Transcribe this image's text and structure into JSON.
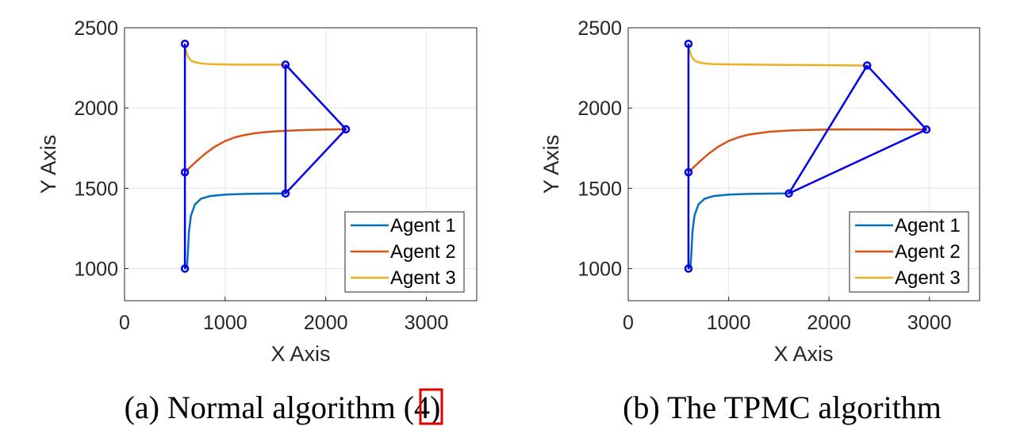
{
  "chart_data": [
    {
      "type": "line",
      "caption_parts": [
        "(a) Normal algorithm (",
        "4",
        ")"
      ],
      "xlabel": "X Axis",
      "ylabel": "Y Axis",
      "xlim": [
        0,
        3500
      ],
      "ylim": [
        800,
        2500
      ],
      "xticks": [
        0,
        1000,
        2000,
        3000
      ],
      "yticks": [
        1000,
        1500,
        2000,
        2500
      ],
      "grid": true,
      "legend_position": "bottom-right",
      "series": [
        {
          "name": "Agent 1",
          "color": "#0072BD",
          "x": [
            600,
            620,
            630,
            640,
            660,
            700,
            760,
            850,
            1000,
            1200,
            1400,
            1600
          ],
          "y": [
            1000,
            1010,
            1100,
            1230,
            1330,
            1400,
            1435,
            1452,
            1461,
            1465,
            1467,
            1468
          ]
        },
        {
          "name": "Agent 2",
          "color": "#D95319",
          "x": [
            600,
            700,
            800,
            900,
            1000,
            1100,
            1200,
            1300,
            1400,
            1500,
            1600,
            1800,
            2000,
            2200
          ],
          "y": [
            1600,
            1660,
            1715,
            1760,
            1795,
            1818,
            1833,
            1843,
            1850,
            1855,
            1858,
            1863,
            1866,
            1868
          ]
        },
        {
          "name": "Agent 3",
          "color": "#EDB120",
          "x": [
            600,
            610,
            630,
            660,
            700,
            760,
            850,
            1000,
            1200,
            1400,
            1600
          ],
          "y": [
            2400,
            2360,
            2320,
            2297,
            2285,
            2278,
            2274,
            2271,
            2270,
            2270,
            2270
          ]
        }
      ],
      "markers": {
        "color": "#0000EE",
        "x": [
          600,
          600,
          600,
          1600,
          1600,
          2200
        ],
        "y": [
          1000,
          1600,
          2400,
          1468,
          2270,
          1868
        ]
      },
      "links": [
        [
          600,
          1000,
          600,
          1600
        ],
        [
          600,
          1600,
          600,
          2400
        ],
        [
          1600,
          1468,
          1600,
          2270
        ],
        [
          1600,
          2270,
          2200,
          1868
        ],
        [
          2200,
          1868,
          1600,
          1468
        ]
      ]
    },
    {
      "type": "line",
      "caption_parts": [
        "(b) The TPMC algorithm",
        "",
        ""
      ],
      "xlabel": "X Axis",
      "ylabel": "Y Axis",
      "xlim": [
        0,
        3500
      ],
      "ylim": [
        800,
        2500
      ],
      "xticks": [
        0,
        1000,
        2000,
        3000
      ],
      "yticks": [
        1000,
        1500,
        2000,
        2500
      ],
      "grid": true,
      "legend_position": "bottom-right",
      "series": [
        {
          "name": "Agent 1",
          "color": "#0072BD",
          "x": [
            600,
            620,
            630,
            640,
            660,
            700,
            760,
            850,
            1000,
            1200,
            1400,
            1600
          ],
          "y": [
            1000,
            1010,
            1100,
            1230,
            1330,
            1400,
            1435,
            1452,
            1461,
            1465,
            1467,
            1468
          ]
        },
        {
          "name": "Agent 2",
          "color": "#D95319",
          "x": [
            600,
            700,
            800,
            900,
            1000,
            1100,
            1200,
            1400,
            1600,
            1800,
            2000,
            2200,
            2400,
            2600,
            2800,
            2970
          ],
          "y": [
            1600,
            1660,
            1715,
            1760,
            1795,
            1818,
            1835,
            1852,
            1860,
            1864,
            1866,
            1867,
            1867,
            1866,
            1866,
            1866
          ]
        },
        {
          "name": "Agent 3",
          "color": "#EDB120",
          "x": [
            600,
            610,
            630,
            660,
            700,
            760,
            850,
            1000,
            1300,
            1600,
            1900,
            2200,
            2380
          ],
          "y": [
            2400,
            2360,
            2320,
            2297,
            2285,
            2278,
            2274,
            2272,
            2270,
            2268,
            2267,
            2266,
            2265
          ]
        }
      ],
      "markers": {
        "color": "#0000EE",
        "x": [
          600,
          600,
          600,
          1600,
          2380,
          2970
        ],
        "y": [
          1000,
          1600,
          2400,
          1468,
          2265,
          1866
        ]
      },
      "links": [
        [
          600,
          1000,
          600,
          1600
        ],
        [
          600,
          1600,
          600,
          2400
        ],
        [
          1600,
          1468,
          2380,
          2265
        ],
        [
          2380,
          2265,
          2970,
          1866
        ],
        [
          2970,
          1866,
          1600,
          1468
        ]
      ]
    }
  ],
  "caption_highlight_color": "#E00000"
}
